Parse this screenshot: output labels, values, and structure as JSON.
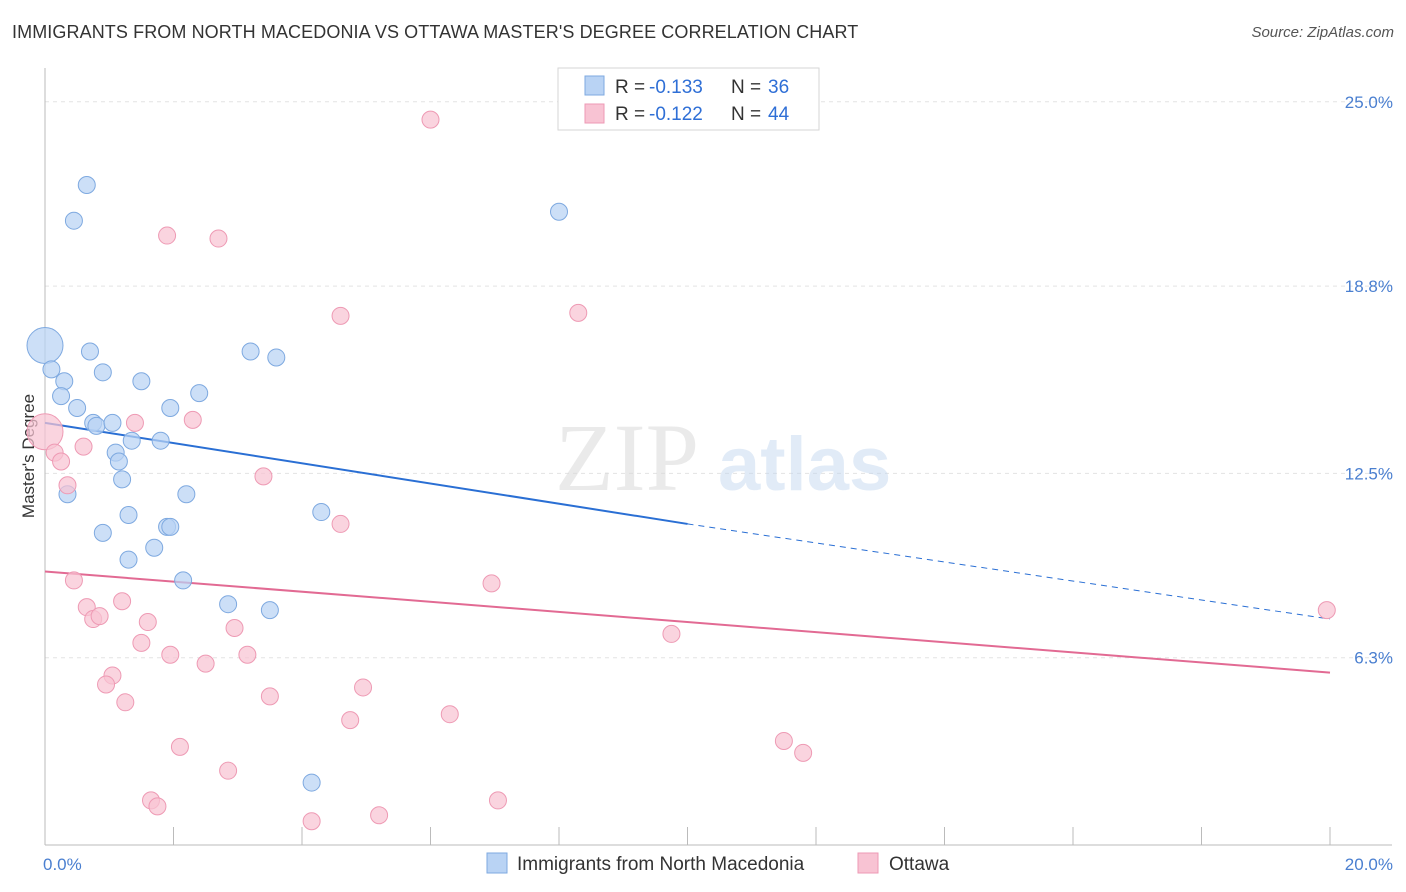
{
  "header": {
    "title": "IMMIGRANTS FROM NORTH MACEDONIA VS OTTAWA MASTER'S DEGREE CORRELATION CHART",
    "source": "Source: ZipAtlas.com"
  },
  "watermark": {
    "zip": "ZIP",
    "atlas": "atlas"
  },
  "colors": {
    "blue_fill": "#b9d3f4",
    "blue_stroke": "#7ea9e0",
    "blue_line": "#2a6fd4",
    "pink_fill": "#f8c3d3",
    "pink_stroke": "#ee9ab4",
    "pink_line": "#e26a93",
    "grid": "#e3e3e3",
    "tick_label": "#4a7fd0"
  },
  "legend": {
    "r_label": "R = ",
    "n_label": "N = ",
    "entries": [
      {
        "r": "-0.133",
        "n": "36"
      },
      {
        "r": "-0.122",
        "n": "44"
      }
    ]
  },
  "chart_data": {
    "type": "scatter",
    "title": "IMMIGRANTS FROM NORTH MACEDONIA VS OTTAWA MASTER'S DEGREE CORRELATION CHART",
    "xlabel": "",
    "ylabel": "Master's Degree",
    "xlim": [
      0,
      20
    ],
    "ylim": [
      0,
      25.8
    ],
    "x_tick_labels": [
      "0.0%",
      "20.0%"
    ],
    "y_ticks": [
      6.3,
      12.5,
      18.8,
      25.0
    ],
    "y_tick_labels": [
      "6.3%",
      "12.5%",
      "18.8%",
      "25.0%"
    ],
    "grid": true,
    "legend_position": "top-center",
    "series": [
      {
        "name": "Immigrants from North Macedonia",
        "color": "#b9d3f4",
        "points": [
          [
            0.65,
            22.2
          ],
          [
            0.45,
            21.0
          ],
          [
            8.0,
            21.3
          ],
          [
            0.0,
            16.8
          ],
          [
            0.1,
            16.0
          ],
          [
            0.7,
            16.6
          ],
          [
            3.2,
            16.6
          ],
          [
            3.6,
            16.4
          ],
          [
            0.3,
            15.6
          ],
          [
            0.9,
            15.9
          ],
          [
            1.5,
            15.6
          ],
          [
            0.25,
            15.1
          ],
          [
            2.4,
            15.2
          ],
          [
            0.5,
            14.7
          ],
          [
            1.95,
            14.7
          ],
          [
            0.75,
            14.2
          ],
          [
            0.8,
            14.1
          ],
          [
            1.05,
            14.2
          ],
          [
            1.35,
            13.6
          ],
          [
            1.8,
            13.6
          ],
          [
            1.1,
            13.2
          ],
          [
            1.15,
            12.9
          ],
          [
            1.2,
            12.3
          ],
          [
            0.35,
            11.8
          ],
          [
            2.2,
            11.8
          ],
          [
            4.3,
            11.2
          ],
          [
            1.3,
            11.1
          ],
          [
            1.9,
            10.7
          ],
          [
            0.9,
            10.5
          ],
          [
            1.7,
            10.0
          ],
          [
            1.3,
            9.6
          ],
          [
            2.15,
            8.9
          ],
          [
            2.85,
            8.1
          ],
          [
            3.5,
            7.9
          ],
          [
            4.15,
            2.1
          ],
          [
            1.95,
            10.7
          ]
        ],
        "trend": {
          "x": [
            0,
            10
          ],
          "y": [
            14.2,
            10.8
          ],
          "dashed_to": [
            20,
            7.6
          ]
        }
      },
      {
        "name": "Ottawa",
        "color": "#f8c3d3",
        "points": [
          [
            6.0,
            24.4
          ],
          [
            1.9,
            20.5
          ],
          [
            2.7,
            20.4
          ],
          [
            4.6,
            17.8
          ],
          [
            8.3,
            17.9
          ],
          [
            0.0,
            13.9
          ],
          [
            1.4,
            14.2
          ],
          [
            2.3,
            14.3
          ],
          [
            0.15,
            13.2
          ],
          [
            0.6,
            13.4
          ],
          [
            0.25,
            12.9
          ],
          [
            0.35,
            12.1
          ],
          [
            3.4,
            12.4
          ],
          [
            4.6,
            10.8
          ],
          [
            0.45,
            8.9
          ],
          [
            6.95,
            8.8
          ],
          [
            19.95,
            7.9
          ],
          [
            1.2,
            8.2
          ],
          [
            0.65,
            8.0
          ],
          [
            0.75,
            7.6
          ],
          [
            0.85,
            7.7
          ],
          [
            1.6,
            7.5
          ],
          [
            2.95,
            7.3
          ],
          [
            9.75,
            7.1
          ],
          [
            1.5,
            6.8
          ],
          [
            1.95,
            6.4
          ],
          [
            3.15,
            6.4
          ],
          [
            2.5,
            6.1
          ],
          [
            1.05,
            5.7
          ],
          [
            0.95,
            5.4
          ],
          [
            4.95,
            5.3
          ],
          [
            3.5,
            5.0
          ],
          [
            1.25,
            4.8
          ],
          [
            6.3,
            4.4
          ],
          [
            4.75,
            4.2
          ],
          [
            11.5,
            3.5
          ],
          [
            11.8,
            3.1
          ],
          [
            2.1,
            3.3
          ],
          [
            2.85,
            2.5
          ],
          [
            1.65,
            1.5
          ],
          [
            1.75,
            1.3
          ],
          [
            7.05,
            1.5
          ],
          [
            5.2,
            1.0
          ],
          [
            4.15,
            0.8
          ]
        ],
        "trend": {
          "x": [
            0,
            20
          ],
          "y": [
            9.2,
            5.8
          ]
        }
      }
    ]
  },
  "bottom_legend": {
    "items": [
      {
        "label": "Immigrants from North Macedonia"
      },
      {
        "label": "Ottawa"
      }
    ]
  }
}
